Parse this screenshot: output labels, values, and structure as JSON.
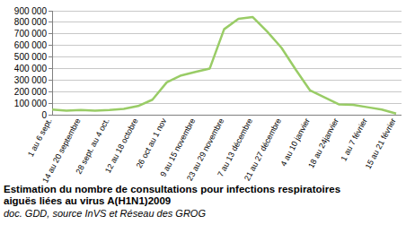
{
  "chart_data": {
    "type": "line",
    "title": "Estimation du nombre de consultations pour infections respiratoires aiguës liées au virus A(H1N1)2009",
    "subtitle": "doc. GDD, source InVS et Réseau des GROG",
    "categories": [
      "1 au 6 sept.",
      null,
      "14 au 20 septembre",
      null,
      "28 sept. au 4 oct.",
      null,
      "12 au 18 octobre",
      null,
      "26 oct au 1 nov",
      null,
      "9 au 15 novembre",
      null,
      "23 au 29 novembre",
      null,
      "7 au 13 décembre",
      null,
      "21 au 27 décembre",
      null,
      "4 au 10 janvier",
      null,
      "18 au 24janvier",
      null,
      "1 au 7 février",
      null,
      "15 au 21 février"
    ],
    "values": [
      45000,
      35000,
      40000,
      35000,
      40000,
      50000,
      75000,
      130000,
      280000,
      340000,
      370000,
      400000,
      740000,
      830000,
      845000,
      720000,
      580000,
      390000,
      210000,
      150000,
      90000,
      85000,
      65000,
      45000,
      10000
    ],
    "color": "#99cc66",
    "ylim": [
      0,
      900000
    ],
    "yticks": [
      0,
      {
        "value": 100000,
        "label": "100 000"
      },
      {
        "value": 200000,
        "label": "200 000"
      },
      {
        "value": 300000,
        "label": "300 000"
      },
      {
        "value": 400000,
        "label": "400 000"
      },
      {
        "value": 500000,
        "label": "500 000"
      },
      {
        "value": 600000,
        "label": "600 000"
      },
      {
        "value": 700000,
        "label": "700 000"
      },
      {
        "value": 800000,
        "label": "800 000"
      },
      {
        "value": 900000,
        "label": "900 000"
      }
    ],
    "grid": true
  }
}
